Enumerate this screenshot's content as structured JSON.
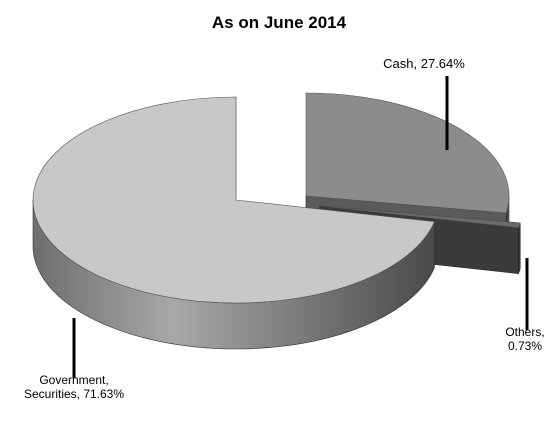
{
  "chart_data": {
    "type": "pie",
    "title": "As on June 2014",
    "slices": [
      {
        "label": "Cash",
        "value": 27.64,
        "label_lines": [
          "Cash, 27.64%"
        ],
        "top_color": "#8c8c8c",
        "side_color": "#5a5a5a"
      },
      {
        "label": "Others",
        "value": 0.73,
        "label_lines": [
          "Others,",
          "0.73%"
        ],
        "top_color": "#6a6a6a",
        "side_color": "#3a3a3a"
      },
      {
        "label": "Government, Securities",
        "value": 71.63,
        "label_lines": [
          "Government,",
          "Securities, 71.63%"
        ],
        "top_color": "#c8c8c8",
        "side_color": "#8a8a8a"
      }
    ],
    "legend": "none",
    "style": "3d-exploded"
  }
}
